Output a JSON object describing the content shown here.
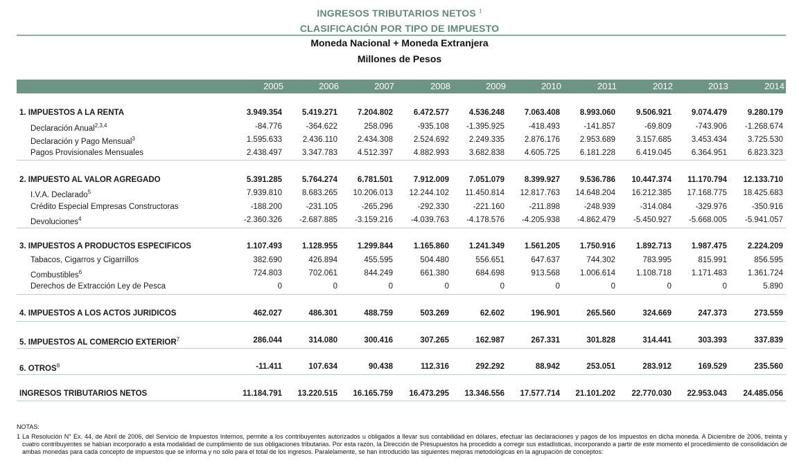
{
  "title": {
    "line1": "INGRESOS TRIBUTARIOS NETOS",
    "line1_sup": "1",
    "line2": "CLASIFICACIÓN POR TIPO DE IMPUESTO",
    "line3": "Moneda Nacional + Moneda Extranjera",
    "line4": "Millones de Pesos"
  },
  "colors": {
    "header_bg": "#6d9584",
    "title_color": "#5f8a78"
  },
  "years": [
    "2005",
    "2006",
    "2007",
    "2008",
    "2009",
    "2010",
    "2011",
    "2012",
    "2013",
    "2014"
  ],
  "rows": [
    {
      "label": "1. IMPUESTOS A LA RENTA",
      "sup": "",
      "type": "sec",
      "values": [
        "3.949.354",
        "5.419.271",
        "7.204.802",
        "6.472.577",
        "4.536.248",
        "7.063.408",
        "8.993.060",
        "9.506.921",
        "9.074.479",
        "9.280.179"
      ]
    },
    {
      "label": "Declaración Anual",
      "sup": "2,3,4",
      "type": "sub",
      "values": [
        "-84.776",
        "-364.622",
        "258.096",
        "-935.108",
        "-1.395.925",
        "-418.493",
        "-141.857",
        "-69.809",
        "-743.906",
        "-1.268.674"
      ]
    },
    {
      "label": "Declaración y Pago Mensual",
      "sup": "3",
      "type": "sub",
      "values": [
        "1.595.633",
        "2.436.110",
        "2.434.308",
        "2.524.692",
        "2.249.335",
        "2.876.176",
        "2.953.689",
        "3.157.685",
        "3.453.434",
        "3.725.530"
      ]
    },
    {
      "label": "Pagos Provisionales Mensuales",
      "sup": "",
      "type": "sub",
      "values": [
        "2.438.497",
        "3.347.783",
        "4.512.397",
        "4.882.993",
        "3.682.838",
        "4.605.725",
        "6.181.228",
        "6.419.045",
        "6.364.951",
        "6.823.323"
      ]
    },
    {
      "label": "2. IMPUESTO AL VALOR AGREGADO",
      "sup": "",
      "type": "sec",
      "values": [
        "5.391.285",
        "5.764.274",
        "6.781.501",
        "7.912.009",
        "7.051.079",
        "8.399.927",
        "9.536.786",
        "10.447.374",
        "11.170.794",
        "12.133.710"
      ]
    },
    {
      "label": "I.V.A. Declarado",
      "sup": "5",
      "type": "sub",
      "values": [
        "7.939.810",
        "8.683.265",
        "10.206.013",
        "12.244.102",
        "11.450.814",
        "12.817.763",
        "14.648.204",
        "16.212.385",
        "17.168.775",
        "18.425.683"
      ]
    },
    {
      "label": "Crédito Especial Empresas Constructoras",
      "sup": "",
      "type": "sub",
      "values": [
        "-188.200",
        "-231.105",
        "-265.296",
        "-292.330",
        "-221.160",
        "-211.898",
        "-248.939",
        "-314.084",
        "-329.976",
        "-350.916"
      ]
    },
    {
      "label": "Devoluciones",
      "sup": "4",
      "type": "sub",
      "values": [
        "-2.360.326",
        "-2.687.885",
        "-3.159.216",
        "-4.039.763",
        "-4.178.576",
        "-4.205.938",
        "-4.862.479",
        "-5.450.927",
        "-5.668.005",
        "-5.941.057"
      ]
    },
    {
      "label": "3. IMPUESTOS A PRODUCTOS ESPECIFICOS",
      "sup": "",
      "type": "sec",
      "values": [
        "1.107.493",
        "1.128.955",
        "1.299.844",
        "1.165.860",
        "1.241.349",
        "1.561.205",
        "1.750.916",
        "1.892.713",
        "1.987.475",
        "2.224.209"
      ]
    },
    {
      "label": "Tabacos, Cigarros y Cigarrillos",
      "sup": "",
      "type": "sub",
      "values": [
        "382.690",
        "426.894",
        "455.595",
        "504.480",
        "556.651",
        "647.637",
        "744.302",
        "783.995",
        "815.991",
        "856.595"
      ]
    },
    {
      "label": "Combustibles",
      "sup": "6",
      "type": "sub",
      "values": [
        "724.803",
        "702.061",
        "844.249",
        "661.380",
        "684.698",
        "913.568",
        "1.006.614",
        "1.108.718",
        "1.171.483",
        "1.361.724"
      ]
    },
    {
      "label": "Derechos de Extracción Ley de Pesca",
      "sup": "",
      "type": "sub",
      "values": [
        "0",
        "0",
        "0",
        "0",
        "0",
        "0",
        "0",
        "0",
        "0",
        "5.890"
      ]
    },
    {
      "label": "4. IMPUESTOS A LOS ACTOS JURIDICOS",
      "sup": "",
      "type": "sec",
      "values": [
        "462.027",
        "486.301",
        "488.759",
        "503.269",
        "62.602",
        "196.901",
        "265.560",
        "324.669",
        "247.373",
        "273.559"
      ]
    },
    {
      "label": "5. IMPUESTOS AL COMERCIO EXTERIOR",
      "sup": "7",
      "type": "sec",
      "values": [
        "286.044",
        "314.080",
        "300.416",
        "307.265",
        "162.987",
        "267.331",
        "301.828",
        "314.441",
        "303.393",
        "337.839"
      ]
    },
    {
      "label": "6. OTROS",
      "sup": "8",
      "type": "sec",
      "values": [
        "-11.411",
        "107.634",
        "90.438",
        "112.316",
        "292.292",
        "88.942",
        "253.051",
        "283.912",
        "169.529",
        "235.560"
      ]
    },
    {
      "label": "INGRESOS TRIBUTARIOS NETOS",
      "sup": "",
      "type": "sec",
      "values": [
        "11.184.791",
        "13.220.515",
        "16.165.759",
        "16.473.295",
        "13.346.556",
        "17.577.714",
        "21.101.202",
        "22.770.030",
        "22.953.043",
        "24.485.056"
      ]
    }
  ],
  "notes": {
    "header": "NOTAS:",
    "note1": "1 La Resolución N° Ex. 44, de Abril de 2006, del Servicio de Impuestos Internos, permite a los contribuyentes autorizados u obligados a llevar sus contabilidad en dólares, efectuar las declaraciones y pagos de los impuestos en dicha moneda. A Diciembre de 2006, treinta y cuatro contribuyentes se habían incorporado a esta modalidad de cumplimiento de sus obligaciones tributarias. Por esta razón, la Dirección de Presupuestos ha procedido a corregir sus estadísticas, incorporando a partir de este momento el procedimiento de consolidación de ambas monedas para cada concepto de impuestos que se informa y no sólo para el total de los ingresos. Paralelamente, se han introducido las siguientes mejoras metodológicas en la agrupación de conceptos:"
  }
}
